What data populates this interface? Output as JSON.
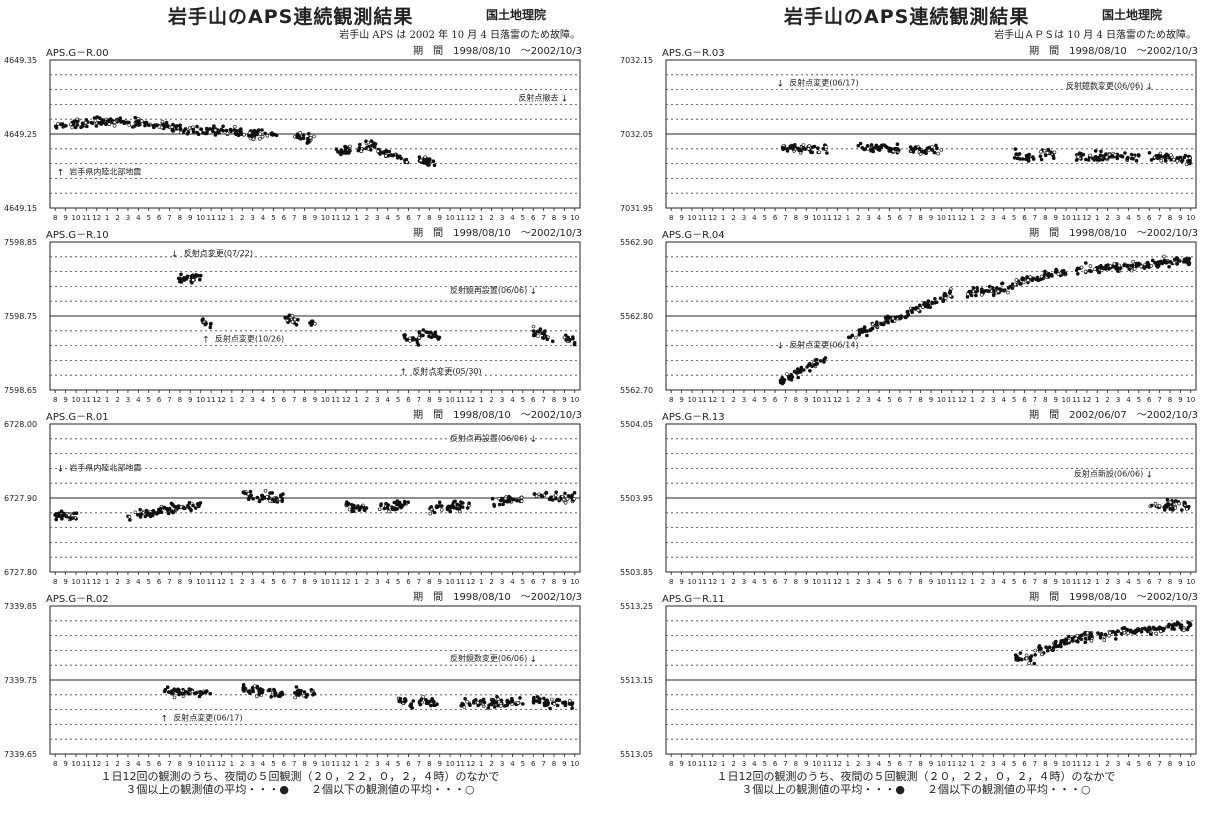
{
  "pages": [
    {
      "title": "岩手山のAPS連続観測結果",
      "org": "国土地理院",
      "note": "岩手山 APS は 2002 年 10 月 4 日落雷のため故障。",
      "footer_line1": "１日12回の観測のうち、夜間の５回観測（２０，２２，０，２，４時）のなかで",
      "footer_line2": "３個以上の観測値の平均・・・●　　２個以下の観測値の平均・・・○",
      "panels": [
        {
          "label": "APS.G－R.00",
          "period": "期　間　1998/08/10　～2002/10/3",
          "y_max": "4649.35",
          "y_mid": "4649.25",
          "y_min": "4649.15",
          "annotations": [
            {
              "text": "反射点撤去",
              "arrow": "↓",
              "mx": 49.0,
              "ty": 0.72
            },
            {
              "text": "岩手県内陸北部地震",
              "arrow": "↑",
              "mx": 0.5,
              "ty": 0.22
            }
          ]
        },
        {
          "label": "APS.G－R.10",
          "period": "期　間　1998/08/10　～2002/10/3",
          "y_max": "7598.85",
          "y_mid": "7598.75",
          "y_min": "7598.65",
          "annotations": [
            {
              "text": "反射点変更(07/22)",
              "arrow": "↓",
              "mx": 11.5,
              "ty": 0.9
            },
            {
              "text": "反射鏡再設置(06/06)",
              "arrow": "↓",
              "mx": 46.0,
              "ty": 0.65
            },
            {
              "text": "反射点変更(10/26)",
              "arrow": "↑",
              "mx": 14.5,
              "ty": 0.32
            },
            {
              "text": "反射点変更(05/30)",
              "arrow": "↑",
              "mx": 33.5,
              "ty": 0.1
            }
          ]
        },
        {
          "label": "APS.G－R.01",
          "period": "期　間　1998/08/10　～2002/10/3",
          "y_max": "6728.00",
          "y_mid": "6727.90",
          "y_min": "6727.80",
          "annotations": [
            {
              "text": "反射点再設置(06/06)",
              "arrow": "↓",
              "mx": 46.0,
              "ty": 0.88
            },
            {
              "text": "岩手県内陸北部地震",
              "arrow": "↓",
              "mx": 0.5,
              "ty": 0.68
            }
          ]
        },
        {
          "label": "APS.G－R.02",
          "period": "期　間　1998/08/10　～2002/10/3",
          "y_max": "7339.85",
          "y_mid": "7339.75",
          "y_min": "7339.65",
          "annotations": [
            {
              "text": "反射鏡数変更(06/06)",
              "arrow": "↓",
              "mx": 46.0,
              "ty": 0.62
            },
            {
              "text": "反射点変更(06/17)",
              "arrow": "↑",
              "mx": 10.5,
              "ty": 0.22
            }
          ]
        }
      ]
    },
    {
      "title": "岩手山のAPS連続観測結果",
      "org": "国土地理院",
      "note": "岩手山ＡＰＳは 10 月 4 日落雷のため故障。",
      "footer_line1": "１日12回の観測のうち、夜間の５回観測（２０，２２，０，２，４時）のなかで",
      "footer_line2": "３個以上の観測値の平均・・・●　　２個以下の観測値の平均・・・○",
      "panels": [
        {
          "label": "APS.G－R.03",
          "period": "期　間　1998/08/10　～2002/10/3",
          "y_max": "7032.15",
          "y_mid": "7032.05",
          "y_min": "7031.95",
          "annotations": [
            {
              "text": "反射点変更(06/17)",
              "arrow": "↓",
              "mx": 10.5,
              "ty": 0.82
            },
            {
              "text": "反射鏡数変更(06/06)",
              "arrow": "↓",
              "mx": 46.0,
              "ty": 0.8
            }
          ]
        },
        {
          "label": "APS.G－R.04",
          "period": "期　間　1998/08/10　～2002/10/3",
          "y_max": "5562.90",
          "y_mid": "5562.80",
          "y_min": "5562.70",
          "annotations": [
            {
              "text": "反射点変更(06/14)",
              "arrow": "↓",
              "mx": 10.5,
              "ty": 0.28
            }
          ]
        },
        {
          "label": "APS.G－R.13",
          "period": "期　間　2002/06/07　～2002/10/3",
          "y_max": "5504.05",
          "y_mid": "5503.95",
          "y_min": "5503.85",
          "annotations": [
            {
              "text": "反射点新設(06/06)",
              "arrow": "↓",
              "mx": 46.0,
              "ty": 0.64
            }
          ]
        },
        {
          "label": "APS.G－R.11",
          "period": "期　間　1998/08/10　～2002/10/3",
          "y_max": "5513.25",
          "y_mid": "5513.15",
          "y_min": "5513.05",
          "annotations": []
        }
      ]
    }
  ],
  "chart_data": [
    {
      "type": "scatter",
      "panel": "APS.G－R.00",
      "xlabels": [
        "8",
        "9",
        "10",
        "11",
        "12",
        "1",
        "2",
        "3",
        "4",
        "5",
        "6",
        "7",
        "8",
        "9",
        "10",
        "11",
        "12",
        "1",
        "2",
        "3",
        "4",
        "5",
        "6",
        "7",
        "8",
        "9",
        "10",
        "11",
        "12",
        "1",
        "2",
        "3",
        "4",
        "5",
        "6",
        "7",
        "8",
        "9",
        "10",
        "11",
        "12",
        "1",
        "2",
        "3",
        "4",
        "5",
        "6",
        "7",
        "8",
        "9",
        "10"
      ],
      "ylim": [
        4649.15,
        4649.35
      ],
      "segments": [
        {
          "x0": 0,
          "x1": 6,
          "y0": 4649.262,
          "y1": 4649.268
        },
        {
          "x0": 6,
          "x1": 12,
          "y0": 4649.267,
          "y1": 4649.258
        },
        {
          "x0": 12,
          "x1": 18,
          "y0": 4649.257,
          "y1": 4649.253
        },
        {
          "x0": 18,
          "x1": 21.5,
          "y0": 4649.251,
          "y1": 4649.247
        },
        {
          "x0": 23,
          "x1": 25,
          "y0": 4649.248,
          "y1": 4649.243
        },
        {
          "x0": 27,
          "x1": 28.5,
          "y0": 4649.225,
          "y1": 4649.228
        },
        {
          "x0": 29,
          "x1": 31,
          "y0": 4649.23,
          "y1": 4649.237
        },
        {
          "x0": 31,
          "x1": 34,
          "y0": 4649.227,
          "y1": 4649.215
        },
        {
          "x0": 34.5,
          "x1": 36.5,
          "y0": 4649.214,
          "y1": 4649.212
        }
      ]
    },
    {
      "type": "scatter",
      "panel": "APS.G－R.10",
      "xlabels": [
        "8",
        "9",
        "10",
        "11",
        "12",
        "1",
        "2",
        "3",
        "4",
        "5",
        "6",
        "7",
        "8",
        "9",
        "10",
        "11",
        "12",
        "1",
        "2",
        "3",
        "4",
        "5",
        "6",
        "7",
        "8",
        "9",
        "10",
        "11",
        "12",
        "1",
        "2",
        "3",
        "4",
        "5",
        "6",
        "7",
        "8",
        "9",
        "10",
        "11",
        "12",
        "1",
        "2",
        "3",
        "4",
        "5",
        "6",
        "7",
        "8",
        "9",
        "10"
      ],
      "ylim": [
        7598.65,
        7598.85
      ],
      "segments": [
        {
          "x0": 11.5,
          "x1": 14,
          "y0": 7598.8,
          "y1": 7598.802
        },
        {
          "x0": 14,
          "x1": 15,
          "y0": 7598.744,
          "y1": 7598.735
        },
        {
          "x0": 22,
          "x1": 23.5,
          "y0": 7598.747,
          "y1": 7598.742
        },
        {
          "x0": 24.5,
          "x1": 25,
          "y0": 7598.742,
          "y1": 7598.742
        },
        {
          "x0": 33.5,
          "x1": 35,
          "y0": 7598.722,
          "y1": 7598.718
        },
        {
          "x0": 35,
          "x1": 37,
          "y0": 7598.725,
          "y1": 7598.722
        },
        {
          "x0": 46,
          "x1": 48,
          "y0": 7598.728,
          "y1": 7598.722
        },
        {
          "x0": 49,
          "x1": 50,
          "y0": 7598.72,
          "y1": 7598.715
        }
      ]
    },
    {
      "type": "scatter",
      "panel": "APS.G－R.01",
      "xlabels": [
        "8",
        "9",
        "10",
        "11",
        "12",
        "1",
        "2",
        "3",
        "4",
        "5",
        "6",
        "7",
        "8",
        "9",
        "10",
        "11",
        "12",
        "1",
        "2",
        "3",
        "4",
        "5",
        "6",
        "7",
        "8",
        "9",
        "10",
        "11",
        "12",
        "1",
        "2",
        "3",
        "4",
        "5",
        "6",
        "7",
        "8",
        "9",
        "10",
        "11",
        "12",
        "1",
        "2",
        "3",
        "4",
        "5",
        "6",
        "7",
        "8",
        "9",
        "10"
      ],
      "ylim": [
        6727.8,
        6728.0
      ],
      "segments": [
        {
          "x0": 0,
          "x1": 2.5,
          "y0": 6727.877,
          "y1": 6727.874
        },
        {
          "x0": 7,
          "x1": 10,
          "y0": 6727.876,
          "y1": 6727.882
        },
        {
          "x0": 10,
          "x1": 14,
          "y0": 6727.884,
          "y1": 6727.89
        },
        {
          "x0": 18,
          "x1": 22,
          "y0": 6727.904,
          "y1": 6727.9
        },
        {
          "x0": 28,
          "x1": 30,
          "y0": 6727.89,
          "y1": 6727.884
        },
        {
          "x0": 31,
          "x1": 34,
          "y0": 6727.886,
          "y1": 6727.892
        },
        {
          "x0": 36,
          "x1": 40,
          "y0": 6727.885,
          "y1": 6727.892
        },
        {
          "x0": 42,
          "x1": 45,
          "y0": 6727.894,
          "y1": 6727.9
        },
        {
          "x0": 46,
          "x1": 50,
          "y0": 6727.904,
          "y1": 6727.9
        }
      ]
    },
    {
      "type": "scatter",
      "panel": "APS.G－R.02",
      "xlabels": [
        "8",
        "9",
        "10",
        "11",
        "12",
        "1",
        "2",
        "3",
        "4",
        "5",
        "6",
        "7",
        "8",
        "9",
        "10",
        "11",
        "12",
        "1",
        "2",
        "3",
        "4",
        "5",
        "6",
        "7",
        "8",
        "9",
        "10",
        "11",
        "12",
        "1",
        "2",
        "3",
        "4",
        "5",
        "6",
        "7",
        "8",
        "9",
        "10",
        "11",
        "12",
        "1",
        "2",
        "3",
        "4",
        "5",
        "6",
        "7",
        "8",
        "9",
        "10"
      ],
      "ylim": [
        7339.65,
        7339.85
      ],
      "segments": [
        {
          "x0": 10.5,
          "x1": 15,
          "y0": 7339.734,
          "y1": 7339.733
        },
        {
          "x0": 18,
          "x1": 22,
          "y0": 7339.738,
          "y1": 7339.73
        },
        {
          "x0": 23,
          "x1": 25,
          "y0": 7339.732,
          "y1": 7339.732
        },
        {
          "x0": 33,
          "x1": 34.5,
          "y0": 7339.722,
          "y1": 7339.716
        },
        {
          "x0": 35,
          "x1": 37,
          "y0": 7339.722,
          "y1": 7339.72
        },
        {
          "x0": 39,
          "x1": 45,
          "y0": 7339.718,
          "y1": 7339.722
        },
        {
          "x0": 46,
          "x1": 50,
          "y0": 7339.722,
          "y1": 7339.716
        }
      ]
    },
    {
      "type": "scatter",
      "panel": "APS.G－R.03",
      "xlabels": [
        "8",
        "9",
        "10",
        "11",
        "12",
        "1",
        "2",
        "3",
        "4",
        "5",
        "6",
        "7",
        "8",
        "9",
        "10",
        "11",
        "12",
        "1",
        "2",
        "3",
        "4",
        "5",
        "6",
        "7",
        "8",
        "9",
        "10",
        "11",
        "12",
        "1",
        "2",
        "3",
        "4",
        "5",
        "6",
        "7",
        "8",
        "9",
        "10",
        "11",
        "12",
        "1",
        "2",
        "3",
        "4",
        "5",
        "6",
        "7",
        "8",
        "9",
        "10"
      ],
      "ylim": [
        7031.95,
        7032.15
      ],
      "segments": [
        {
          "x0": 10.5,
          "x1": 15,
          "y0": 7032.03,
          "y1": 7032.03
        },
        {
          "x0": 18,
          "x1": 22,
          "y0": 7032.032,
          "y1": 7032.03
        },
        {
          "x0": 23,
          "x1": 26,
          "y0": 7032.03,
          "y1": 7032.028
        },
        {
          "x0": 33,
          "x1": 35,
          "y0": 7032.022,
          "y1": 7032.016
        },
        {
          "x0": 35.5,
          "x1": 37,
          "y0": 7032.024,
          "y1": 7032.022
        },
        {
          "x0": 39,
          "x1": 45,
          "y0": 7032.019,
          "y1": 7032.019
        },
        {
          "x0": 46,
          "x1": 50,
          "y0": 7032.02,
          "y1": 7032.016
        }
      ]
    },
    {
      "type": "scatter",
      "panel": "APS.G－R.04",
      "xlabels": [
        "8",
        "9",
        "10",
        "11",
        "12",
        "1",
        "2",
        "3",
        "4",
        "5",
        "6",
        "7",
        "8",
        "9",
        "10",
        "11",
        "12",
        "1",
        "2",
        "3",
        "4",
        "5",
        "6",
        "7",
        "8",
        "9",
        "10",
        "11",
        "12",
        "1",
        "2",
        "3",
        "4",
        "5",
        "6",
        "7",
        "8",
        "9",
        "10",
        "11",
        "12",
        "1",
        "2",
        "3",
        "4",
        "5",
        "6",
        "7",
        "8",
        "9",
        "10"
      ],
      "ylim": [
        5562.7,
        5562.9
      ],
      "segments": [
        {
          "x0": 10.5,
          "x1": 15,
          "y0": 5562.71,
          "y1": 5562.745
        },
        {
          "x0": 17,
          "x1": 22,
          "y0": 5562.77,
          "y1": 5562.8
        },
        {
          "x0": 22,
          "x1": 27,
          "y0": 5562.8,
          "y1": 5562.83
        },
        {
          "x0": 28.5,
          "x1": 33,
          "y0": 5562.83,
          "y1": 5562.84
        },
        {
          "x0": 33,
          "x1": 38,
          "y0": 5562.845,
          "y1": 5562.86
        },
        {
          "x0": 39,
          "x1": 45,
          "y0": 5562.862,
          "y1": 5562.868
        },
        {
          "x0": 45,
          "x1": 50,
          "y0": 5562.868,
          "y1": 5562.876
        }
      ]
    },
    {
      "type": "scatter",
      "panel": "APS.G－R.13",
      "xlabels": [
        "8",
        "9",
        "10",
        "11",
        "12",
        "1",
        "2",
        "3",
        "4",
        "5",
        "6",
        "7",
        "8",
        "9",
        "10",
        "11",
        "12",
        "1",
        "2",
        "3",
        "4",
        "5",
        "6",
        "7",
        "8",
        "9",
        "10",
        "11",
        "12",
        "1",
        "2",
        "3",
        "4",
        "5",
        "6",
        "7",
        "8",
        "9",
        "10",
        "11",
        "12",
        "1",
        "2",
        "3",
        "4",
        "5",
        "6",
        "7",
        "8",
        "9",
        "10"
      ],
      "ylim": [
        5503.85,
        5504.05
      ],
      "segments": [
        {
          "x0": 46,
          "x1": 50,
          "y0": 5503.938,
          "y1": 5503.942
        }
      ]
    },
    {
      "type": "scatter",
      "panel": "APS.G－R.11",
      "xlabels": [
        "8",
        "9",
        "10",
        "11",
        "12",
        "1",
        "2",
        "3",
        "4",
        "5",
        "6",
        "7",
        "8",
        "9",
        "10",
        "11",
        "12",
        "1",
        "2",
        "3",
        "4",
        "5",
        "6",
        "7",
        "8",
        "9",
        "10",
        "11",
        "12",
        "1",
        "2",
        "3",
        "4",
        "5",
        "6",
        "7",
        "8",
        "9",
        "10",
        "11",
        "12",
        "1",
        "2",
        "3",
        "4",
        "5",
        "6",
        "7",
        "8",
        "9",
        "10"
      ],
      "ylim": [
        5513.05,
        5513.25
      ],
      "segments": [
        {
          "x0": 33,
          "x1": 35,
          "y0": 5513.18,
          "y1": 5513.178
        },
        {
          "x0": 35,
          "x1": 38,
          "y0": 5513.19,
          "y1": 5513.2
        },
        {
          "x0": 38,
          "x1": 44,
          "y0": 5513.205,
          "y1": 5513.215
        },
        {
          "x0": 44,
          "x1": 50,
          "y0": 5513.215,
          "y1": 5513.225
        }
      ]
    }
  ]
}
